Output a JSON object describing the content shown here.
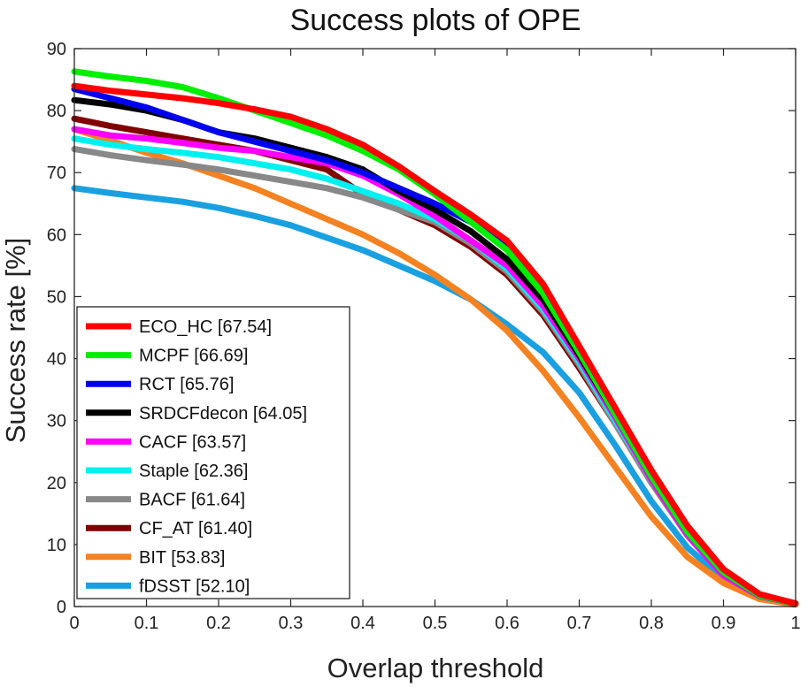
{
  "chart_data": {
    "type": "line",
    "title": "Success plots of OPE",
    "xlabel": "Overlap threshold",
    "ylabel": "Success rate [%]",
    "xlim": [
      0,
      1
    ],
    "ylim": [
      0,
      90
    ],
    "xticks": [
      0,
      0.1,
      0.2,
      0.3,
      0.4,
      0.5,
      0.6,
      0.7,
      0.8,
      0.9,
      1
    ],
    "xtick_labels": [
      "0",
      "0.1",
      "0.2",
      "0.3",
      "0.4",
      "0.5",
      "0.6",
      "0.7",
      "0.8",
      "0.9",
      "1"
    ],
    "yticks": [
      0,
      10,
      20,
      30,
      40,
      50,
      60,
      70,
      80,
      90
    ],
    "ytick_labels": [
      "0",
      "10",
      "20",
      "30",
      "40",
      "50",
      "60",
      "70",
      "80",
      "90"
    ],
    "grid": false,
    "legend_position": "bottom-left",
    "x": [
      0,
      0.05,
      0.1,
      0.15,
      0.2,
      0.25,
      0.3,
      0.35,
      0.4,
      0.45,
      0.5,
      0.55,
      0.6,
      0.65,
      0.7,
      0.75,
      0.8,
      0.85,
      0.9,
      0.95,
      1
    ],
    "series": [
      {
        "name": "ECO_HC",
        "legend_label": "ECO_HC [67.54]",
        "auc": 67.54,
        "color": "#ff0000",
        "values": [
          84,
          83.2,
          82.6,
          82,
          81.2,
          80.2,
          79,
          77,
          74.5,
          71,
          67,
          63.2,
          59,
          52,
          42,
          32,
          22,
          13,
          6,
          2,
          0.5
        ]
      },
      {
        "name": "MCPF",
        "legend_label": "MCPF [66.69]",
        "auc": 66.69,
        "color": "#00ee00",
        "values": [
          86.3,
          85.5,
          84.8,
          83.8,
          82,
          80,
          78,
          76,
          73.5,
          70.5,
          66.5,
          62,
          57.5,
          50.5,
          41,
          31,
          21,
          12,
          5.5,
          1.8,
          0.5
        ]
      },
      {
        "name": "RCT",
        "legend_label": "RCT [65.76]",
        "auc": 65.76,
        "color": "#0000ee",
        "values": [
          83.5,
          82,
          80.5,
          78.5,
          76.5,
          75,
          73.5,
          72,
          70,
          67.5,
          65,
          62,
          58,
          51.5,
          41.5,
          31.5,
          21,
          12,
          5.5,
          1.8,
          0.5
        ]
      },
      {
        "name": "SRDCFdecon",
        "legend_label": "SRDCFdecon [64.05]",
        "auc": 64.05,
        "color": "#000000",
        "values": [
          81.7,
          81,
          80,
          78.5,
          76.5,
          75.5,
          74,
          72.5,
          70.5,
          67,
          64,
          60.5,
          56,
          49.5,
          40.5,
          31,
          21,
          12,
          5.5,
          1.8,
          0.5
        ]
      },
      {
        "name": "CACF",
        "legend_label": "CACF [63.57]",
        "auc": 63.57,
        "color": "#ff00ff",
        "values": [
          77,
          76,
          75.5,
          74.8,
          74,
          73.5,
          72.5,
          71.5,
          69.5,
          66.5,
          63,
          59,
          55,
          48.5,
          40,
          30.5,
          20.5,
          11.5,
          5,
          1.7,
          0.5
        ]
      },
      {
        "name": "Staple",
        "legend_label": "Staple [62.36]",
        "auc": 62.36,
        "color": "#00f0f0",
        "values": [
          75.5,
          74.5,
          73.8,
          73.2,
          72.5,
          71.5,
          70.5,
          69,
          67,
          65,
          62.5,
          59,
          54.5,
          48,
          39.5,
          30,
          20.5,
          11.5,
          5,
          1.7,
          0.5
        ]
      },
      {
        "name": "BACF",
        "legend_label": "BACF [61.64]",
        "auc": 61.64,
        "color": "#888888",
        "values": [
          73.8,
          72.8,
          72,
          71.3,
          70.5,
          69.5,
          68.5,
          67.5,
          66,
          64,
          62,
          58.5,
          54,
          47.5,
          39,
          29.5,
          20,
          11.5,
          5,
          1.7,
          0.5
        ]
      },
      {
        "name": "CF_AT",
        "legend_label": "CF_AT [61.40]",
        "auc": 61.4,
        "color": "#800000",
        "values": [
          78.7,
          77.5,
          76.5,
          75.5,
          74.5,
          73.5,
          72,
          70.5,
          66.5,
          64,
          61.5,
          58,
          53.5,
          47,
          38.5,
          29.5,
          20,
          11.5,
          5,
          1.7,
          0.5
        ]
      },
      {
        "name": "BIT",
        "legend_label": "BIT [53.83]",
        "auc": 53.83,
        "color": "#f58220",
        "values": [
          77,
          75.2,
          73.2,
          71.5,
          69.5,
          67.5,
          65,
          62.5,
          60,
          57,
          53.5,
          49.5,
          44.5,
          38,
          30.5,
          22.5,
          14.5,
          8,
          3.8,
          1.2,
          0.3
        ]
      },
      {
        "name": "fDSST",
        "legend_label": "fDSST [52.10]",
        "auc": 52.1,
        "color": "#1aa0e0",
        "values": [
          67.5,
          66.7,
          66,
          65.3,
          64.3,
          63,
          61.5,
          59.5,
          57.5,
          55,
          52.5,
          49.5,
          45.5,
          41,
          34.5,
          26,
          17,
          9.5,
          4.5,
          1.5,
          0.5
        ]
      }
    ]
  }
}
